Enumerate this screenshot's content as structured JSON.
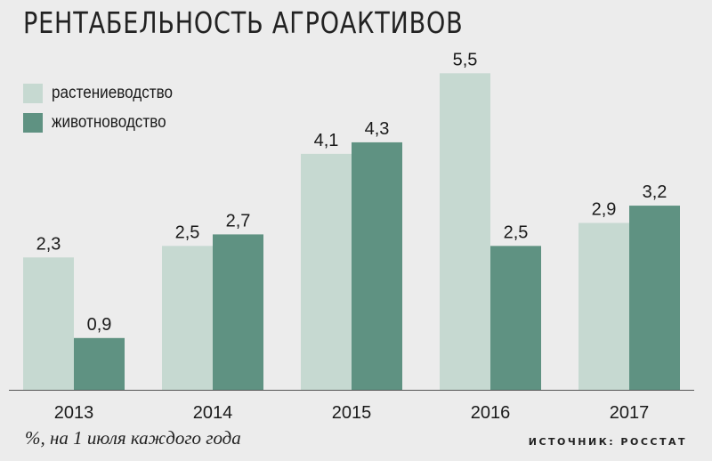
{
  "chart_data": {
    "type": "bar",
    "title": "РЕНТАБЕЛЬНОСТЬ АГРОАКТИВОВ",
    "categories": [
      "2013",
      "2014",
      "2015",
      "2016",
      "2017"
    ],
    "series": [
      {
        "name": "растениеводство",
        "values": [
          2.3,
          2.5,
          4.1,
          5.5,
          2.9
        ],
        "labels": [
          "2,3",
          "2,5",
          "4,1",
          "5,5",
          "2,9"
        ],
        "color": "#c6d9d1"
      },
      {
        "name": "животноводство",
        "values": [
          0.9,
          2.7,
          4.3,
          2.5,
          3.2
        ],
        "labels": [
          "0,9",
          "2,7",
          "4,3",
          "2,5",
          "3,2"
        ],
        "color": "#5f9282"
      }
    ],
    "ylim": [
      0,
      6
    ],
    "grid": false,
    "legend": "top-left"
  },
  "note": "%, на 1 июля каждого года",
  "source": "ИСТОЧНИК: РОССТАТ",
  "colors": {
    "background": "#ececec",
    "axis": "#555555"
  }
}
